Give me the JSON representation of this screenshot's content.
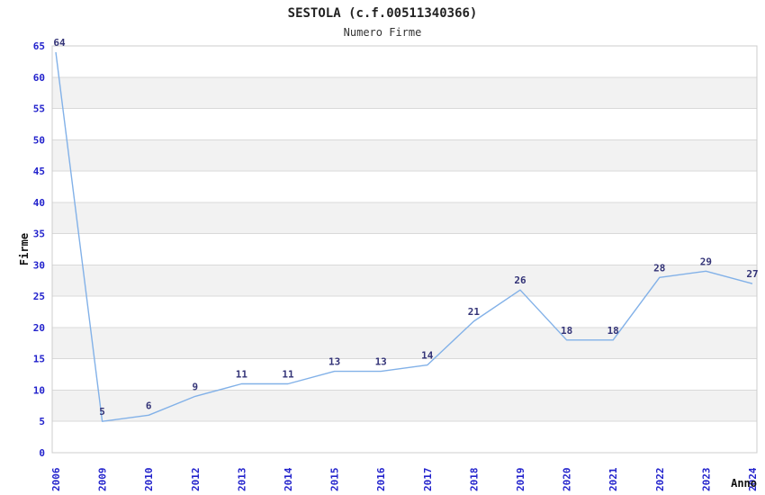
{
  "title": "SESTOLA (c.f.00511340366)",
  "subtitle": "Numero Firme",
  "chart_data": {
    "type": "line",
    "title": "SESTOLA (c.f.00511340366)",
    "subtitle": "Numero Firme",
    "xlabel": "Anno",
    "ylabel": "Firme",
    "categories": [
      "2006",
      "2009",
      "2010",
      "2012",
      "2013",
      "2014",
      "2015",
      "2016",
      "2017",
      "2018",
      "2019",
      "2020",
      "2021",
      "2022",
      "2023",
      "2024"
    ],
    "values": [
      64,
      5,
      6,
      9,
      11,
      11,
      13,
      13,
      14,
      21,
      26,
      18,
      18,
      28,
      29,
      27
    ],
    "ylim": [
      0,
      65
    ],
    "ytick_step": 5,
    "yticks": [
      0,
      5,
      10,
      15,
      20,
      25,
      30,
      35,
      40,
      45,
      50,
      55,
      60,
      65
    ],
    "grid": true,
    "banded_background": true,
    "show_point_labels": true,
    "legend_position": "none",
    "colors": {
      "line": "#82b1e8",
      "tick_label": "#2222cc",
      "point_label": "#333377",
      "band": "#f2f2f2",
      "gridline": "#d9d9d9",
      "frame": "#cccccc",
      "title": "#222222",
      "subtitle": "#333333",
      "axis_title": "#111111",
      "background": "#ffffff"
    }
  }
}
